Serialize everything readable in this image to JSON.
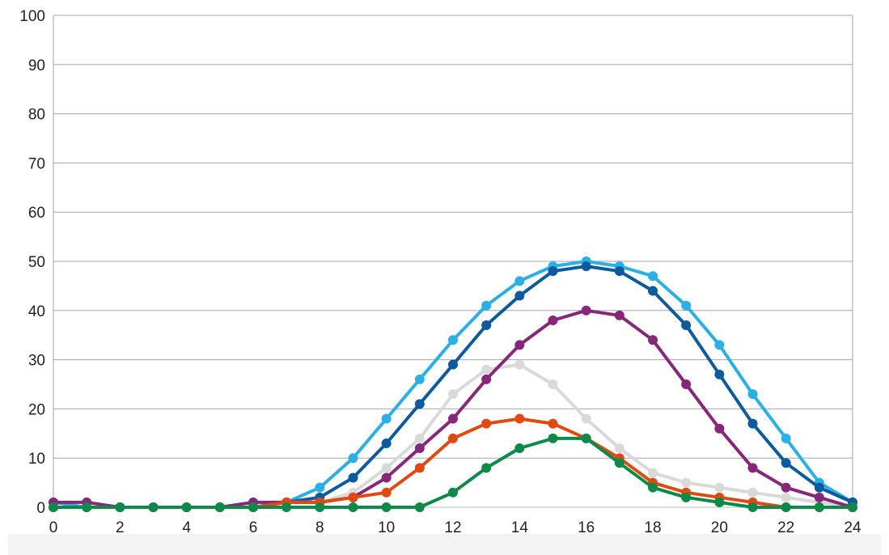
{
  "chart_data": {
    "type": "line",
    "title": "",
    "xlabel": "",
    "ylabel": "",
    "xlim": [
      0,
      24
    ],
    "ylim": [
      0,
      100
    ],
    "x_ticks": [
      "0",
      "2",
      "4",
      "6",
      "8",
      "10",
      "12",
      "14",
      "16",
      "18",
      "20",
      "22",
      "24"
    ],
    "y_ticks": [
      "0",
      "10",
      "20",
      "30",
      "40",
      "50",
      "60",
      "70",
      "80",
      "90",
      "100"
    ],
    "grid": true,
    "x": [
      0,
      1,
      2,
      3,
      4,
      5,
      6,
      7,
      8,
      9,
      10,
      11,
      12,
      13,
      14,
      15,
      16,
      17,
      18,
      19,
      20,
      21,
      22,
      23,
      24
    ],
    "series": [
      {
        "color": "#2bb0e6",
        "values": [
          1,
          0,
          0,
          0,
          0,
          0,
          0,
          1,
          4,
          10,
          18,
          26,
          34,
          41,
          46,
          49,
          50,
          49,
          47,
          41,
          33,
          23,
          14,
          5,
          1
        ]
      },
      {
        "color": "#0d5a9e",
        "values": [
          0,
          0,
          0,
          0,
          0,
          0,
          0,
          1,
          2,
          6,
          13,
          21,
          29,
          37,
          43,
          48,
          49,
          48,
          44,
          37,
          27,
          17,
          9,
          4,
          1
        ]
      },
      {
        "color": "#d9d9d9",
        "values": [
          0,
          0,
          0,
          0,
          0,
          0,
          0,
          1,
          1,
          3,
          8,
          14,
          23,
          28,
          29,
          25,
          18,
          12,
          7,
          5,
          4,
          3,
          2,
          1,
          0
        ]
      },
      {
        "color": "#86277a",
        "values": [
          1,
          1,
          0,
          0,
          0,
          0,
          1,
          1,
          1,
          2,
          6,
          12,
          18,
          26,
          33,
          38,
          40,
          39,
          34,
          25,
          16,
          8,
          4,
          2,
          0
        ]
      },
      {
        "color": "#e14912",
        "values": [
          0,
          0,
          0,
          0,
          0,
          0,
          0,
          1,
          1,
          2,
          3,
          8,
          14,
          17,
          18,
          17,
          14,
          10,
          5,
          3,
          2,
          1,
          0,
          0,
          0
        ]
      },
      {
        "color": "#0d8a4a",
        "values": [
          0,
          0,
          0,
          0,
          0,
          0,
          0,
          0,
          0,
          0,
          0,
          0,
          3,
          8,
          12,
          14,
          14,
          9,
          4,
          2,
          1,
          0,
          0,
          0,
          0
        ]
      }
    ]
  }
}
